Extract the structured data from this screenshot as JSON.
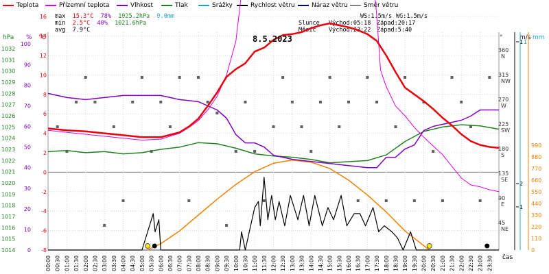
{
  "date": "8.5.2023",
  "legend": [
    {
      "label": "Teplota",
      "color": "#e8000b"
    },
    {
      "label": "Přízemní teplota",
      "color": "#e000e0"
    },
    {
      "label": "Vlhkost",
      "color": "#8000c0"
    },
    {
      "label": "Tlak",
      "color": "#208020"
    },
    {
      "label": "Srážky",
      "color": "#20a0d0"
    },
    {
      "label": "Rychlost větru",
      "color": "#000000"
    },
    {
      "label": "Náraz větru",
      "color": "#000080"
    },
    {
      "label": "Směr větru",
      "color": "#808080"
    }
  ],
  "stats": {
    "max_label": "max",
    "max_temp": "15.3°C",
    "max_hum": "78%",
    "max_press": "1025.2hPa",
    "max_rain": "0.0mm",
    "min_label": "min",
    "min_temp": "2.5°C",
    "min_hum": "40%",
    "min_press": "1021.6hPa",
    "avg_label": "avg",
    "avg_temp": "7.9°C"
  },
  "sun": {
    "ws": "WS:1.5m/s",
    "wg": "WG:1.5m/s",
    "sun_label": "Slunce",
    "sunrise": "Východ:05:18",
    "sunset": "Západ:20:17",
    "moon_label": "Měsíc",
    "moonrise": "Východ:23:22",
    "moonset": "Západ:5:40"
  },
  "colors": {
    "temp": "#e8000b",
    "ground": "#e000e0",
    "humidity": "#8000c0",
    "pressure": "#208020",
    "rain": "#20a0d0",
    "wind": "#000000",
    "gust": "#000080",
    "dir": "#606060",
    "sun": "#f08000"
  },
  "axes": {
    "hpa_title": "hPa",
    "pct_title": "%",
    "c_title": "°C",
    "deg_title": "°",
    "ms_title": "m/s",
    "mm_title": "mm",
    "xlabel": "čas",
    "hpa_ticks": [
      "1032",
      "1031",
      "1030",
      "1029",
      "1028",
      "1027",
      "1026",
      "1025",
      "1024",
      "1023",
      "1022",
      "1021",
      "1020",
      "1019",
      "1018",
      "1017",
      "1016",
      "1015",
      "1014"
    ],
    "pct_ticks": [
      "100",
      "90",
      "80",
      "70",
      "60",
      "50",
      "40",
      "30",
      "20",
      "10",
      "0"
    ],
    "c_ticks": [
      "20",
      "18",
      "16",
      "14",
      "12",
      "10",
      "8",
      "6",
      "4",
      "2",
      "0",
      "-2",
      "-4",
      "-6",
      "-8"
    ],
    "dir_ticks": [
      {
        "deg": "360",
        "name": "N"
      },
      {
        "deg": "315",
        "name": "NW"
      },
      {
        "deg": "270",
        "name": "W"
      },
      {
        "deg": "225",
        "name": "SW"
      },
      {
        "deg": "180",
        "name": "S"
      },
      {
        "deg": "135",
        "name": "SE"
      },
      {
        "deg": "90",
        "name": "E"
      },
      {
        "deg": "45",
        "name": "NE"
      }
    ],
    "ms_ticks": [
      "1",
      "2",
      "1"
    ],
    "mm_ticks": [
      "1"
    ],
    "sun_ticks": [
      "990",
      "880",
      "770",
      "660",
      "550",
      "440",
      "330",
      "220",
      "110",
      "0"
    ],
    "time_ticks": [
      "00:00",
      "00:30",
      "01:00",
      "01:30",
      "02:00",
      "02:30",
      "03:00",
      "03:30",
      "04:00",
      "04:30",
      "05:00",
      "05:30",
      "06:00",
      "06:30",
      "07:00",
      "07:30",
      "08:00",
      "08:30",
      "09:00",
      "09:30",
      "10:00",
      "10:30",
      "11:00",
      "11:30",
      "12:00",
      "12:30",
      "13:00",
      "13:30",
      "14:00",
      "14:30",
      "15:00",
      "15:30",
      "16:00",
      "16:30",
      "17:00",
      "17:30",
      "18:00",
      "18:30",
      "19:00",
      "19:30",
      "20:00",
      "20:30",
      "21:00",
      "21:30",
      "22:00",
      "22:30",
      "23:00",
      "23:30"
    ]
  },
  "chart_data": {
    "type": "line",
    "title": "8.5.2023",
    "xlabel": "čas",
    "x_unit": "hours",
    "xlim": [
      0,
      24
    ],
    "series": [
      {
        "name": "Teplota",
        "unit": "°C",
        "x": [
          0,
          1,
          2,
          3,
          4,
          5,
          6,
          7,
          7.5,
          8,
          8.5,
          9,
          9.5,
          10,
          10.5,
          11,
          11.5,
          12,
          12.5,
          13,
          13.5,
          14,
          14.5,
          15,
          15.5,
          16,
          16.5,
          17,
          17.5,
          18,
          18.5,
          19,
          19.5,
          20,
          20.5,
          21,
          21.5,
          22,
          22.5,
          23,
          23.5,
          24
        ],
        "values": [
          4.5,
          4.3,
          4.2,
          4.0,
          3.8,
          3.6,
          3.6,
          4.1,
          4.7,
          5.5,
          6.8,
          8.2,
          9.8,
          10.6,
          11.2,
          12.4,
          12.8,
          13.6,
          14.1,
          14.2,
          14.4,
          14.8,
          15.1,
          15.3,
          15.1,
          14.9,
          14.6,
          14.2,
          13.5,
          12.0,
          10.3,
          8.7,
          8.0,
          7.3,
          6.5,
          5.6,
          4.8,
          3.9,
          3.2,
          2.8,
          2.6,
          2.5
        ]
      },
      {
        "name": "Přízemní teplota",
        "unit": "°C",
        "x": [
          0,
          1,
          2,
          3,
          4,
          5,
          6,
          7,
          7.5,
          8,
          8.5,
          9,
          9.5,
          10,
          10.3,
          10.5,
          11,
          11.5,
          12,
          13,
          14,
          15,
          16,
          17,
          17.3,
          17.5,
          17.7,
          18,
          18.5,
          19,
          19.5,
          20,
          20.5,
          21,
          21.5,
          22,
          22.5,
          23,
          23.5,
          24
        ],
        "values": [
          4.3,
          4.1,
          3.9,
          3.7,
          3.5,
          3.3,
          3.4,
          4.0,
          4.6,
          5.3,
          6.4,
          7.8,
          10.0,
          13.5,
          18.5,
          21.0,
          20.2,
          20.9,
          20.5,
          21.1,
          20.0,
          20.3,
          20.6,
          20.9,
          20.1,
          16.0,
          10.5,
          8.8,
          6.8,
          5.8,
          4.6,
          3.6,
          2.7,
          1.8,
          0.6,
          -0.6,
          -1.3,
          -1.5,
          -1.8,
          -2.0
        ]
      },
      {
        "name": "Vlhkost",
        "unit": "%",
        "x": [
          0,
          1,
          2,
          3,
          4,
          5,
          6,
          7,
          8,
          9,
          9.5,
          10,
          10.5,
          11,
          11.5,
          12,
          13,
          14,
          15,
          16,
          17,
          17.5,
          18,
          18.5,
          19,
          19.5,
          20,
          20.5,
          21,
          22,
          22.5,
          23,
          24
        ],
        "values": [
          76,
          74,
          73,
          74,
          75,
          75,
          75,
          73,
          72,
          68,
          64,
          56,
          52,
          52,
          50,
          46,
          44,
          43,
          42,
          41,
          40,
          40,
          45,
          45,
          49,
          51,
          58,
          60,
          61,
          63,
          65,
          68,
          68
        ]
      },
      {
        "name": "Tlak",
        "unit": "hPa",
        "x": [
          0,
          1,
          2,
          3,
          4,
          5,
          6,
          7,
          8,
          9,
          10,
          11,
          12,
          13,
          14,
          15,
          16,
          17,
          18,
          19,
          20,
          21,
          22,
          23,
          24
        ],
        "values": [
          1022.8,
          1022.9,
          1022.7,
          1022.8,
          1022.6,
          1022.7,
          1023.0,
          1023.2,
          1023.6,
          1023.5,
          1023.1,
          1022.6,
          1022.4,
          1022.3,
          1022.1,
          1021.8,
          1021.9,
          1022.0,
          1022.5,
          1023.7,
          1024.6,
          1025.0,
          1025.2,
          1025.1,
          1024.8
        ]
      },
      {
        "name": "Rychlost větru",
        "unit": "m/s",
        "x": [
          0,
          5,
          5.5,
          5.6,
          5.7,
          5.9,
          6,
          10.2,
          10.3,
          10.5,
          11,
          11.2,
          11.3,
          11.5,
          11.7,
          11.9,
          12.1,
          12.3,
          12.6,
          12.9,
          13.3,
          13.6,
          13.9,
          14.2,
          14.6,
          14.9,
          15.2,
          15.6,
          15.9,
          16.3,
          16.6,
          16.9,
          17.3,
          17.6,
          17.9,
          18.3,
          18.6,
          18.9,
          19.3,
          19.6,
          24
        ],
        "values": [
          0,
          0,
          0.5,
          0.6,
          0.3,
          0.5,
          0,
          0,
          0.3,
          0,
          0.7,
          0.8,
          0.4,
          1.2,
          0.5,
          0.9,
          0.5,
          0.8,
          0.4,
          0.9,
          0.5,
          0.9,
          0.4,
          0.9,
          0.4,
          0.7,
          0.5,
          0.9,
          0.4,
          0.6,
          0.6,
          0.4,
          0.7,
          0.3,
          0.4,
          0.3,
          0.2,
          0,
          0.3,
          0,
          0
        ]
      },
      {
        "name": "Sluneční záření",
        "unit": "W/m²",
        "x": [
          5.3,
          6,
          7,
          8,
          9,
          10,
          11,
          12,
          13,
          14,
          15,
          16,
          17,
          18,
          19,
          20.3
        ],
        "values": [
          0,
          60,
          180,
          330,
          480,
          620,
          740,
          820,
          850,
          830,
          770,
          660,
          520,
          360,
          180,
          0
        ]
      }
    ],
    "wind_direction_deg": [
      {
        "t": 0.5,
        "deg": 225
      },
      {
        "t": 1,
        "deg": 180
      },
      {
        "t": 1.5,
        "deg": 270
      },
      {
        "t": 2,
        "deg": 315
      },
      {
        "t": 2.5,
        "deg": 270
      },
      {
        "t": 3,
        "deg": 45
      },
      {
        "t": 3.5,
        "deg": 225
      },
      {
        "t": 4,
        "deg": 90
      },
      {
        "t": 4.5,
        "deg": 270
      },
      {
        "t": 5,
        "deg": 315
      },
      {
        "t": 5.5,
        "deg": 180
      },
      {
        "t": 6,
        "deg": 270
      },
      {
        "t": 6.5,
        "deg": 225
      },
      {
        "t": 7,
        "deg": 315
      },
      {
        "t": 7.5,
        "deg": 90
      },
      {
        "t": 8,
        "deg": 315
      },
      {
        "t": 8.5,
        "deg": 270
      },
      {
        "t": 9,
        "deg": 250
      },
      {
        "t": 9.5,
        "deg": 45
      },
      {
        "t": 10,
        "deg": 180
      },
      {
        "t": 10.5,
        "deg": 270
      },
      {
        "t": 11,
        "deg": 180
      },
      {
        "t": 11.5,
        "deg": 90
      },
      {
        "t": 12,
        "deg": 225
      },
      {
        "t": 12.5,
        "deg": 315
      },
      {
        "t": 13,
        "deg": 270
      },
      {
        "t": 13.5,
        "deg": 225
      },
      {
        "t": 14,
        "deg": 180
      },
      {
        "t": 14.5,
        "deg": 270
      },
      {
        "t": 15,
        "deg": 315
      },
      {
        "t": 15.5,
        "deg": 225
      },
      {
        "t": 16,
        "deg": 270
      },
      {
        "t": 16.5,
        "deg": 90
      },
      {
        "t": 17,
        "deg": 315
      },
      {
        "t": 17.5,
        "deg": 270
      },
      {
        "t": 18,
        "deg": 90
      },
      {
        "t": 18.5,
        "deg": 225
      },
      {
        "t": 19,
        "deg": 315
      },
      {
        "t": 19.5,
        "deg": 90
      },
      {
        "t": 20,
        "deg": 270
      },
      {
        "t": 20.5,
        "deg": 180
      },
      {
        "t": 21,
        "deg": 90
      },
      {
        "t": 21.5,
        "deg": 315
      },
      {
        "t": 22,
        "deg": 270
      },
      {
        "t": 22.5,
        "deg": 225
      },
      {
        "t": 23,
        "deg": 90
      },
      {
        "t": 23.5,
        "deg": 315
      }
    ],
    "sun_events": [
      {
        "t": 5.3,
        "label": "sunrise"
      },
      {
        "t": 20.3,
        "label": "sunset"
      }
    ],
    "moon_events": [
      {
        "t": 5.67,
        "label": "moonset"
      },
      {
        "t": 23.37,
        "label": "moonrise"
      }
    ],
    "ranges": {
      "temp_c": [
        -8,
        21.5
      ],
      "humidity_pct": [
        0,
        103.5
      ],
      "pressure_hpa": [
        1014,
        1032.5
      ],
      "direction_deg": [
        0,
        370
      ],
      "wind_ms": [
        0,
        2.5
      ],
      "radiation": [
        0,
        990
      ]
    },
    "grid": true
  }
}
